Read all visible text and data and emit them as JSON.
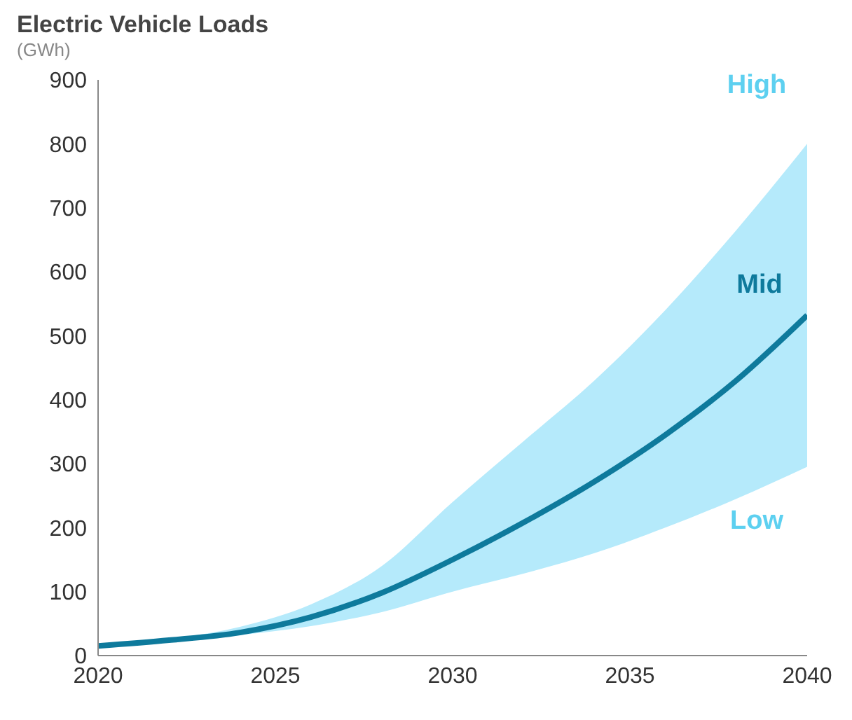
{
  "chart_data": {
    "type": "line",
    "title": "Electric Vehicle Loads",
    "subtitle": "(GWh)",
    "x": [
      2020,
      2022,
      2024,
      2026,
      2028,
      2030,
      2032,
      2034,
      2036,
      2038,
      2040
    ],
    "series": [
      {
        "name": "Mid",
        "color": "#0e7a9c",
        "values": [
          15,
          24,
          36,
          60,
          98,
          150,
          208,
          272,
          345,
          430,
          532
        ],
        "lower": [
          15,
          22,
          32,
          46,
          68,
          100,
          128,
          160,
          200,
          245,
          295
        ],
        "upper": [
          15,
          26,
          45,
          80,
          140,
          240,
          335,
          430,
          540,
          665,
          800
        ]
      }
    ],
    "annotations": [
      "High",
      "Low"
    ],
    "xlim": [
      2020,
      2040
    ],
    "xticks": [
      2020,
      2025,
      2030,
      2035,
      2040
    ],
    "ylim": [
      0,
      900
    ],
    "yticks": [
      0,
      100,
      200,
      300,
      400,
      500,
      600,
      700,
      800,
      900
    ],
    "marker": "none",
    "line_style": "solid"
  }
}
